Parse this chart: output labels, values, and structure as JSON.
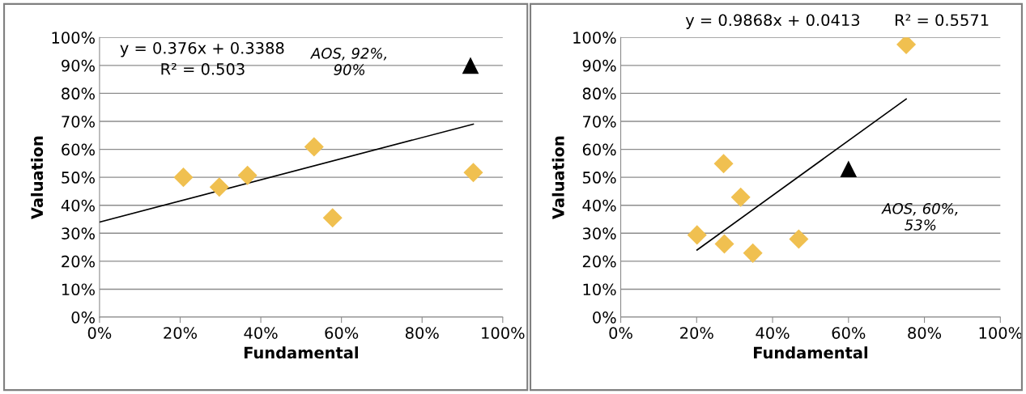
{
  "chart_data": [
    {
      "type": "scatter",
      "xlabel": "Fundamental",
      "ylabel": "Valuation",
      "grid": "y",
      "xlim": [
        0,
        1
      ],
      "ylim": [
        0,
        1
      ],
      "xticks": [
        {
          "value": 0,
          "label": "0%"
        },
        {
          "value": 0.2,
          "label": "20%"
        },
        {
          "value": 0.4,
          "label": "40%"
        },
        {
          "value": 0.6,
          "label": "60%"
        },
        {
          "value": 0.8,
          "label": "80%"
        },
        {
          "value": 1,
          "label": "100%"
        }
      ],
      "yticks": [
        {
          "value": 0,
          "label": "0%"
        },
        {
          "value": 0.1,
          "label": "10%"
        },
        {
          "value": 0.2,
          "label": "20%"
        },
        {
          "value": 0.3,
          "label": "30%"
        },
        {
          "value": 0.4,
          "label": "40%"
        },
        {
          "value": 0.5,
          "label": "50%"
        },
        {
          "value": 0.6,
          "label": "60%"
        },
        {
          "value": 0.7,
          "label": "70%"
        },
        {
          "value": 0.8,
          "label": "80%"
        },
        {
          "value": 0.9,
          "label": "90%"
        },
        {
          "value": 1,
          "label": "100%"
        }
      ],
      "series": [
        {
          "marker": "diamond",
          "color": "#f0c050",
          "x": [
            0.208,
            0.297,
            0.367,
            0.532,
            0.578,
            0.927
          ],
          "values": [
            0.5,
            0.465,
            0.507,
            0.609,
            0.355,
            0.517
          ]
        },
        {
          "marker": "triangle",
          "color": "#000000",
          "x": [
            0.92
          ],
          "values": [
            0.9
          ]
        },
        {
          "type": "line",
          "marker": "none",
          "color": "#000000",
          "x": [
            0,
            0.927
          ],
          "values": [
            0.34,
            0.69
          ]
        }
      ],
      "annotations": [
        "y = 0.376x + 0.3388",
        "R² = 0.503",
        "AOS, 92%,\n90%"
      ]
    },
    {
      "type": "scatter",
      "xlabel": "Fundamental",
      "ylabel": "Valuation",
      "grid": "y",
      "xlim": [
        0,
        1
      ],
      "ylim": [
        0,
        1
      ],
      "xticks": [
        {
          "value": 0,
          "label": "0%"
        },
        {
          "value": 0.2,
          "label": "20%"
        },
        {
          "value": 0.4,
          "label": "40%"
        },
        {
          "value": 0.6,
          "label": "60%"
        },
        {
          "value": 0.8,
          "label": "80%"
        },
        {
          "value": 1,
          "label": "100%"
        }
      ],
      "yticks": [
        {
          "value": 0,
          "label": "0%"
        },
        {
          "value": 0.1,
          "label": "10%"
        },
        {
          "value": 0.2,
          "label": "20%"
        },
        {
          "value": 0.3,
          "label": "30%"
        },
        {
          "value": 0.4,
          "label": "40%"
        },
        {
          "value": 0.5,
          "label": "50%"
        },
        {
          "value": 0.6,
          "label": "60%"
        },
        {
          "value": 0.7,
          "label": "70%"
        },
        {
          "value": 0.8,
          "label": "80%"
        },
        {
          "value": 0.9,
          "label": "90%"
        },
        {
          "value": 1,
          "label": "100%"
        }
      ],
      "series": [
        {
          "marker": "diamond",
          "color": "#f0c050",
          "x": [
            0.201,
            0.271,
            0.273,
            0.316,
            0.348,
            0.469,
            0.752
          ],
          "values": [
            0.294,
            0.549,
            0.262,
            0.429,
            0.229,
            0.279,
            0.975
          ]
        },
        {
          "marker": "triangle",
          "color": "#000000",
          "x": [
            0.6
          ],
          "values": [
            0.53
          ]
        },
        {
          "type": "line",
          "marker": "none",
          "color": "#000000",
          "x": [
            0.201,
            0.752
          ],
          "values": [
            0.24,
            0.78
          ]
        }
      ],
      "annotations": [
        "y = 0.9868x + 0.0413",
        "R² = 0.5571",
        "AOS, 60%,\n53%"
      ]
    }
  ]
}
